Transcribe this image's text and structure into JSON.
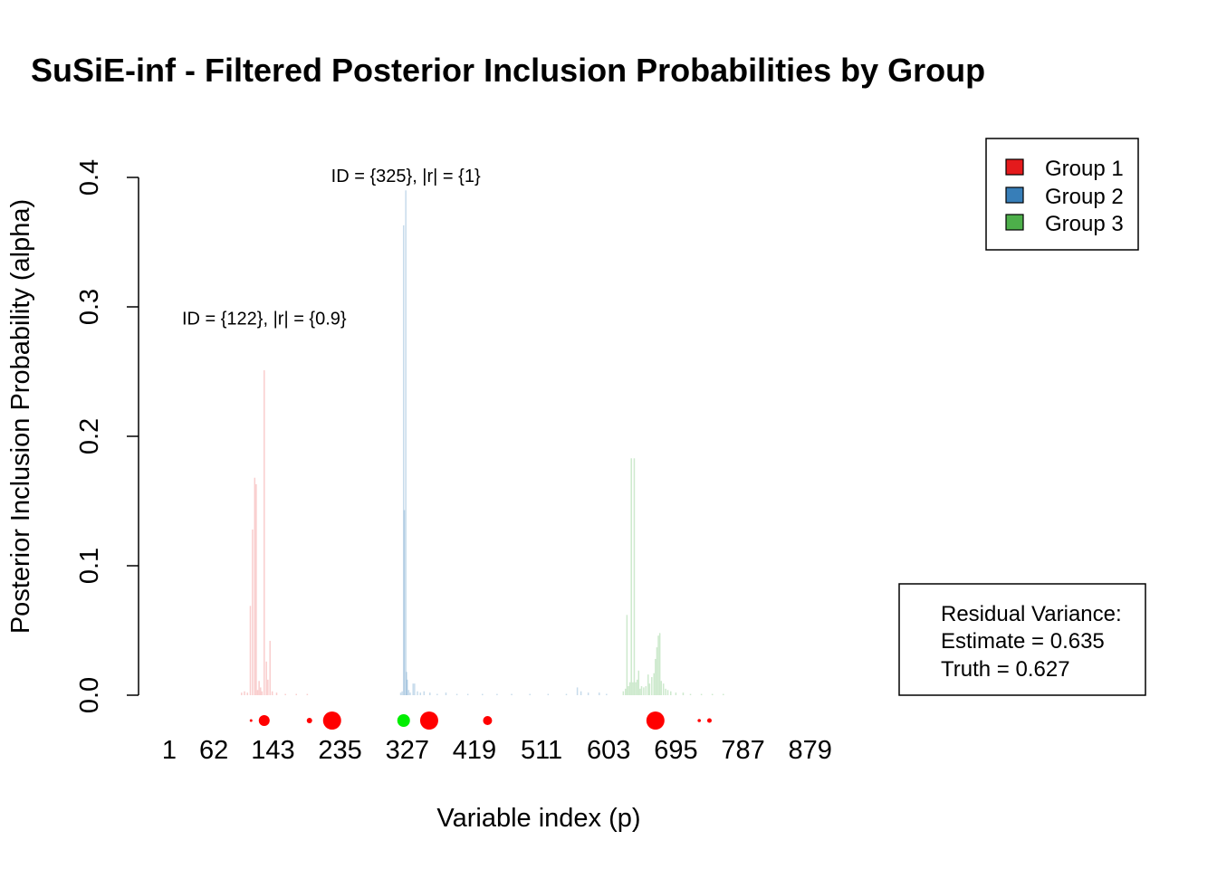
{
  "chart_data": {
    "type": "bar",
    "title": "SuSiE-inf - Filtered Posterior Inclusion Probabilities by Group",
    "xlabel": "Variable index (p)",
    "ylabel": "Posterior Inclusion Probability (alpha)",
    "xlim": [
      1,
      960
    ],
    "ylim": [
      0,
      0.4
    ],
    "x_ticks": [
      1,
      62,
      143,
      235,
      327,
      419,
      511,
      603,
      695,
      787,
      879
    ],
    "y_ticks": [
      "0.0",
      "0.1",
      "0.2",
      "0.3",
      "0.4"
    ],
    "grid": false,
    "series": [
      {
        "name": "Group 1",
        "color": "#E41A1C",
        "bar_opacity": 0.22,
        "points": [
          [
            100,
            0.002
          ],
          [
            104,
            0.003
          ],
          [
            108,
            0.002
          ],
          [
            112,
            0.069
          ],
          [
            115,
            0.128
          ],
          [
            118,
            0.168
          ],
          [
            120,
            0.163
          ],
          [
            122,
            0.004
          ],
          [
            124,
            0.011
          ],
          [
            126,
            0.006
          ],
          [
            128,
            0.003
          ],
          [
            131,
            0.251
          ],
          [
            134,
            0.026
          ],
          [
            136,
            0.012
          ],
          [
            139,
            0.042
          ],
          [
            142,
            0.003
          ],
          [
            148,
            0.002
          ],
          [
            160,
            0.001
          ],
          [
            175,
            0.001
          ],
          [
            190,
            0.001
          ]
        ]
      },
      {
        "name": "Group 2",
        "color": "#377EB8",
        "bar_opacity": 0.28,
        "points": [
          [
            318,
            0.002
          ],
          [
            320,
            0.003
          ],
          [
            322,
            0.363
          ],
          [
            323,
            0.143
          ],
          [
            325,
            0.39
          ],
          [
            326,
            0.018
          ],
          [
            327,
            0.012
          ],
          [
            329,
            0.004
          ],
          [
            331,
            0.002
          ],
          [
            335,
            0.009
          ],
          [
            337,
            0.009
          ],
          [
            341,
            0.003
          ],
          [
            345,
            0.002
          ],
          [
            350,
            0.003
          ],
          [
            358,
            0.002
          ],
          [
            368,
            0.001
          ],
          [
            380,
            0.002
          ],
          [
            395,
            0.001
          ],
          [
            410,
            0.001
          ],
          [
            430,
            0.001
          ],
          [
            450,
            0.001
          ],
          [
            470,
            0.001
          ],
          [
            495,
            0.001
          ],
          [
            520,
            0.001
          ],
          [
            545,
            0.001
          ],
          [
            560,
            0.006
          ],
          [
            565,
            0.003
          ],
          [
            575,
            0.002
          ],
          [
            590,
            0.002
          ],
          [
            600,
            0.001
          ]
        ]
      },
      {
        "name": "Group 3",
        "color": "#4DAF4A",
        "bar_opacity": 0.28,
        "points": [
          [
            623,
            0.003
          ],
          [
            626,
            0.005
          ],
          [
            628,
            0.062
          ],
          [
            630,
            0.007
          ],
          [
            632,
            0.01
          ],
          [
            634,
            0.183
          ],
          [
            636,
            0.01
          ],
          [
            638,
            0.183
          ],
          [
            640,
            0.01
          ],
          [
            642,
            0.012
          ],
          [
            644,
            0.019
          ],
          [
            646,
            0.005
          ],
          [
            648,
            0.007
          ],
          [
            651,
            0.006
          ],
          [
            654,
            0.007
          ],
          [
            657,
            0.016
          ],
          [
            659,
            0.009
          ],
          [
            662,
            0.014
          ],
          [
            665,
            0.017
          ],
          [
            667,
            0.028
          ],
          [
            669,
            0.037
          ],
          [
            671,
            0.046
          ],
          [
            673,
            0.048
          ],
          [
            675,
            0.011
          ],
          [
            678,
            0.009
          ],
          [
            681,
            0.005
          ],
          [
            684,
            0.004
          ],
          [
            688,
            0.003
          ],
          [
            695,
            0.002
          ],
          [
            705,
            0.002
          ],
          [
            715,
            0.001
          ],
          [
            730,
            0.001
          ],
          [
            745,
            0.001
          ],
          [
            760,
            0.001
          ]
        ]
      }
    ],
    "rug_markers": [
      {
        "x": 113,
        "size": 1.5,
        "color": "#FF0000"
      },
      {
        "x": 131,
        "size": 6,
        "color": "#FF0000"
      },
      {
        "x": 193,
        "size": 3,
        "color": "#FF0000"
      },
      {
        "x": 224,
        "size": 10,
        "color": "#FF0000"
      },
      {
        "x": 322,
        "size": 7,
        "color": "#00EE00"
      },
      {
        "x": 357,
        "size": 10,
        "color": "#FF0000"
      },
      {
        "x": 437,
        "size": 5,
        "color": "#FF0000"
      },
      {
        "x": 667,
        "size": 10,
        "color": "#FF0000"
      },
      {
        "x": 727,
        "size": 1.8,
        "color": "#FF0000"
      },
      {
        "x": 741,
        "size": 2.5,
        "color": "#FF0000"
      }
    ],
    "annotations": [
      {
        "text": "ID = {122}, |r| = {0.9}",
        "x": 131,
        "y": 0.29
      },
      {
        "text": "ID = {325}, |r| = {1}",
        "x": 325,
        "y": 0.4
      }
    ],
    "legend": {
      "position": "top-right",
      "items": [
        {
          "label": "Group 1",
          "color": "#E41A1C"
        },
        {
          "label": "Group 2",
          "color": "#377EB8"
        },
        {
          "label": "Group 3",
          "color": "#4DAF4A"
        }
      ]
    },
    "residual_box": {
      "lines": [
        "Residual Variance:",
        "Estimate = 0.635",
        "Truth = 0.627"
      ]
    }
  }
}
